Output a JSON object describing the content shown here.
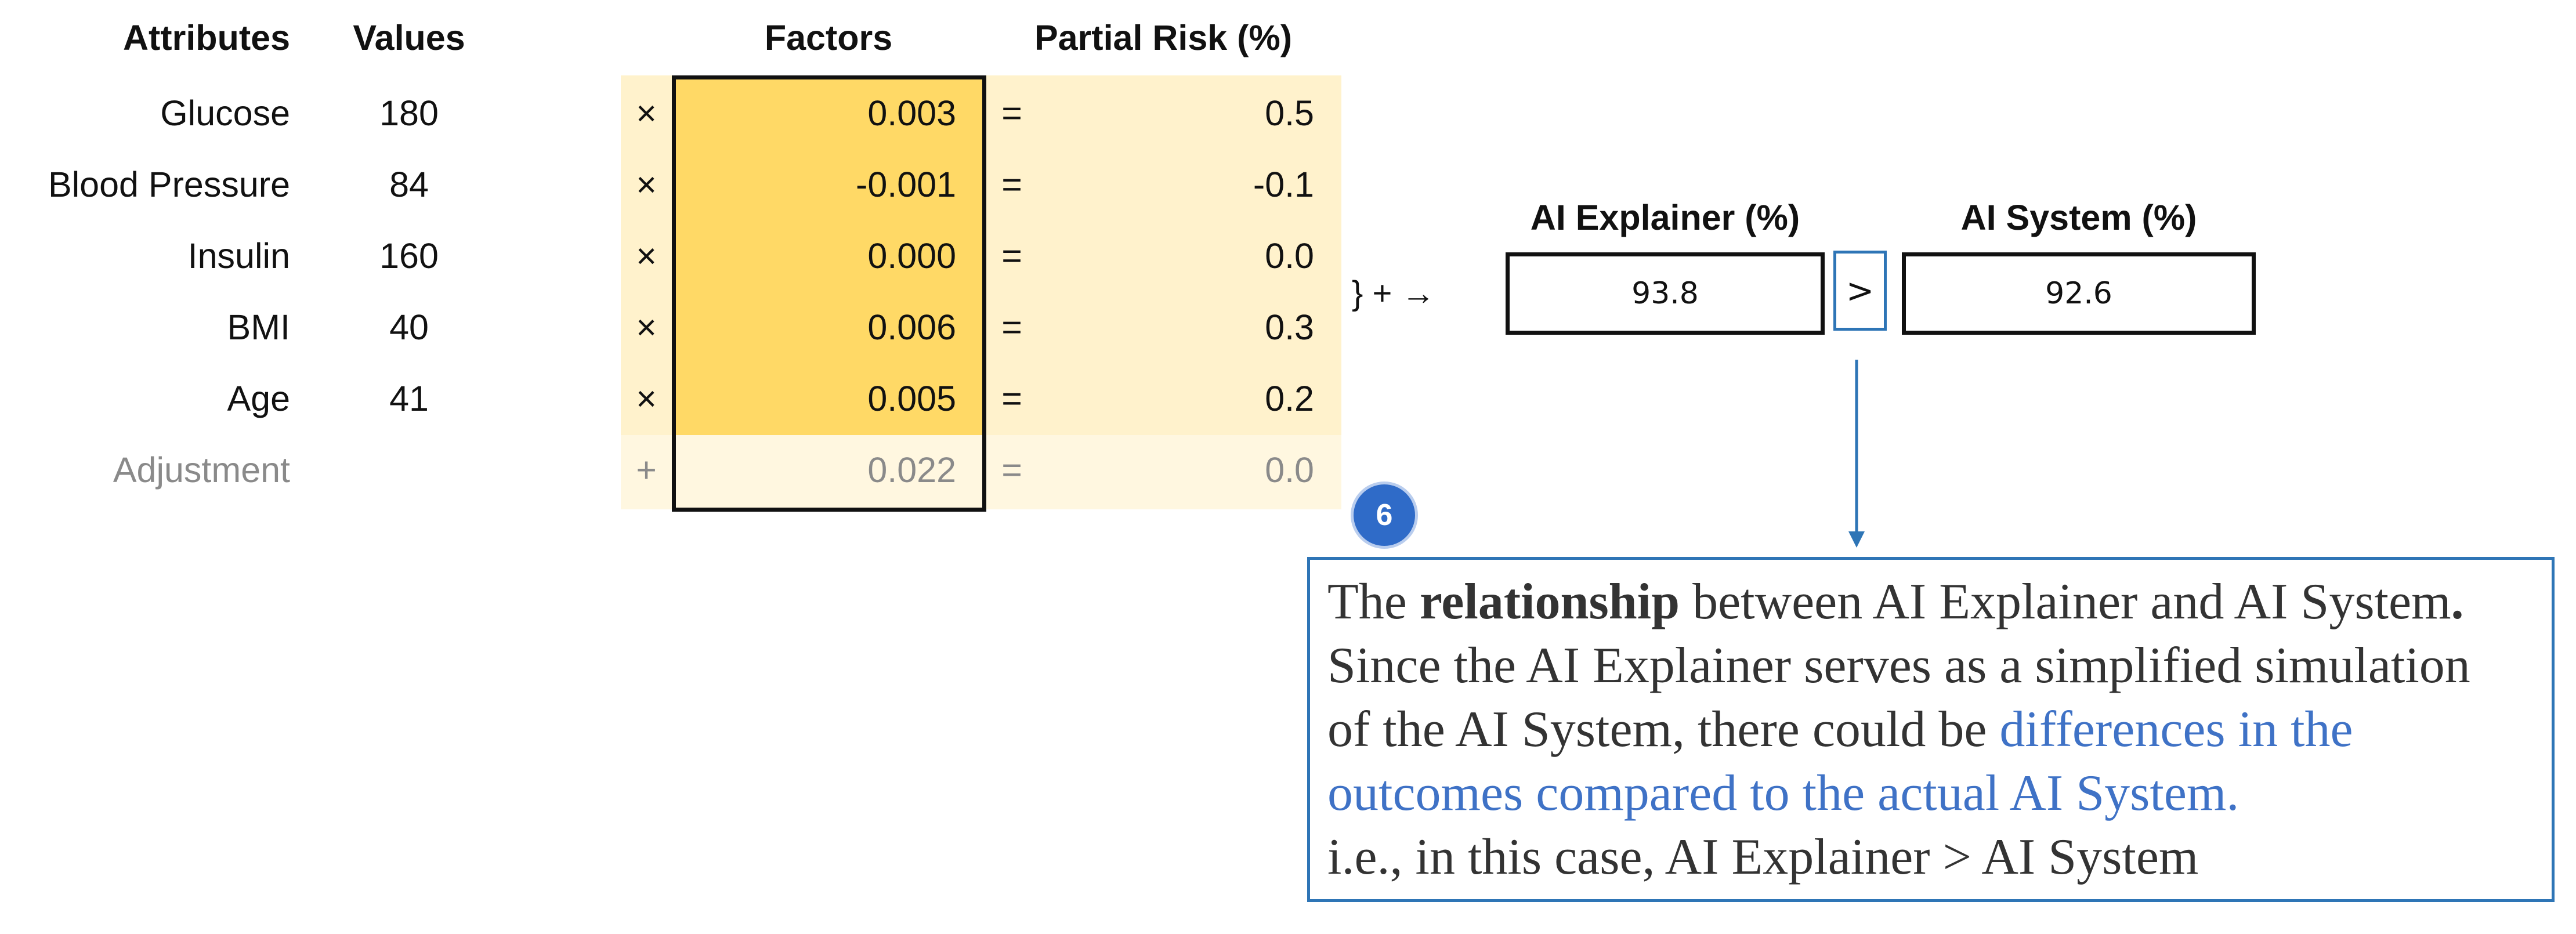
{
  "headers": {
    "attributes": "Attributes",
    "values": "Values",
    "factors": "Factors",
    "partial_risk": "Partial Risk (%)"
  },
  "rows": [
    {
      "attribute": "Glucose",
      "value": "180",
      "op": "×",
      "factor": "0.003",
      "eq": "=",
      "risk": "0.5"
    },
    {
      "attribute": "Blood Pressure",
      "value": "84",
      "op": "×",
      "factor": "-0.001",
      "eq": "=",
      "risk": "-0.1"
    },
    {
      "attribute": "Insulin",
      "value": "160",
      "op": "×",
      "factor": "0.000",
      "eq": "=",
      "risk": "0.0"
    },
    {
      "attribute": "BMI",
      "value": "40",
      "op": "×",
      "factor": "0.006",
      "eq": "=",
      "risk": "0.3"
    },
    {
      "attribute": "Age",
      "value": "41",
      "op": "×",
      "factor": "0.005",
      "eq": "=",
      "risk": "0.2"
    },
    {
      "attribute": "Adjustment",
      "value": "",
      "op": "+",
      "factor": "0.022",
      "eq": "=",
      "risk": "0.0"
    }
  ],
  "sum_symbols": "} + →",
  "explainer": {
    "label": "AI Explainer (%)",
    "value": "93.8"
  },
  "comparison": ">",
  "system": {
    "label": "AI System (%)",
    "value": "92.6"
  },
  "badge": "6",
  "callout": {
    "l1_a": "The ",
    "l1_bold": "relationship",
    "l1_b": " between AI Explainer and AI System",
    "l1_end": ".",
    "l2": "Since the AI Explainer serves as a simplified simulation",
    "l3_a": "of the AI System, there could be ",
    "l3_blue": "differences in the",
    "l4_blue": "outcomes compared to the actual AI System.",
    "l5": "i.e., in this case, AI Explainer > AI System"
  },
  "colors": {
    "factor_fill": "#ffd966",
    "row_fill": "#fff2cc",
    "adjustment_fill": "#fff7e0",
    "accent_blue": "#2e75b6",
    "badge_blue": "#2f6bc8",
    "callout_highlight": "#3f72c6"
  }
}
